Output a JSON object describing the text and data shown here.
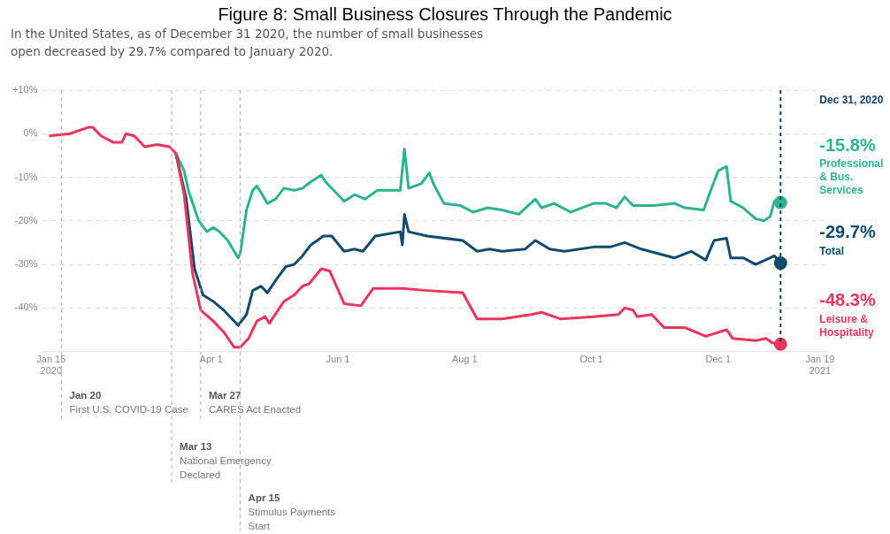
{
  "chart_data": {
    "type": "line",
    "title": "Figure 8: Small Business Closures Through the Pandemic",
    "subtitle": "In the United States, as of December 31 2020, the number of small businesses\nopen decreased by 29.7% compared to January 2020.",
    "xlim": [
      "2020-01-11",
      "2021-01-22"
    ],
    "xticks": [
      {
        "value": "2020-01-15",
        "label": "Jan 15\n2020"
      },
      {
        "value": "2020-04-01",
        "label": "Apr 1"
      },
      {
        "value": "2020-06-01",
        "label": "Jun 1"
      },
      {
        "value": "2020-08-01",
        "label": "Aug 1"
      },
      {
        "value": "2020-10-01",
        "label": "Oct 1"
      },
      {
        "value": "2020-12-01",
        "label": "Dec 1"
      },
      {
        "value": "2021-01-19",
        "label": "Jan 19\n2021"
      }
    ],
    "ylim": [
      -50,
      10
    ],
    "yticks": [
      {
        "value": -40,
        "label": "-40%"
      },
      {
        "value": -30,
        "label": "-30%"
      },
      {
        "value": -20,
        "label": "-20%"
      },
      {
        "value": -10,
        "label": "-10%"
      },
      {
        "value": 0,
        "label": "0%"
      },
      {
        "value": 10,
        "label": "+10%"
      }
    ],
    "grid": "y",
    "legend": false,
    "ref_lines": [
      {
        "axis": "x",
        "value": "2020-01-20",
        "label": "Jan 20\nFirst U.S. COVID-19 Case",
        "color": "#b0b0b0",
        "line_style": "dashed"
      },
      {
        "axis": "x",
        "value": "2020-03-13",
        "label": "Mar 13\nNational Emergency\nDeclared",
        "color": "#b0b0b0",
        "line_style": "dashed"
      },
      {
        "axis": "x",
        "value": "2020-03-27",
        "label": "Mar 27\nCARES Act Enacted",
        "color": "#b0b0b0",
        "line_style": "dashed"
      },
      {
        "axis": "x",
        "value": "2020-04-15",
        "label": "Apr 15\nStimulus Payments\nStart",
        "color": "#b0b0b0",
        "line_style": "dashed"
      },
      {
        "axis": "x",
        "value": "2020-12-31",
        "label": "Dec 31, 2020",
        "color": "#123f5a",
        "line_style": "dashed"
      }
    ],
    "series": [
      {
        "name": "Professional & Bus. Services",
        "color": "#2db390",
        "x": [
          "2020-03-15",
          "2020-03-19",
          "2020-03-21",
          "2020-03-26",
          "2020-03-30",
          "2020-04-02",
          "2020-04-05",
          "2020-04-09",
          "2020-04-14",
          "2020-04-15",
          "2020-04-18",
          "2020-04-21",
          "2020-04-23",
          "2020-04-25",
          "2020-04-28",
          "2020-05-02",
          "2020-05-06",
          "2020-05-11",
          "2020-05-15",
          "2020-05-19",
          "2020-05-24",
          "2020-05-26",
          "2020-06-01",
          "2020-06-04",
          "2020-06-09",
          "2020-06-14",
          "2020-06-20",
          "2020-07-01",
          "2020-07-03",
          "2020-07-05",
          "2020-07-11",
          "2020-07-15",
          "2020-07-17",
          "2020-07-22",
          "2020-07-30",
          "2020-08-05",
          "2020-08-12",
          "2020-08-19",
          "2020-08-27",
          "2020-09-04",
          "2020-09-07",
          "2020-09-13",
          "2020-09-21",
          "2020-10-02",
          "2020-10-08",
          "2020-10-13",
          "2020-10-17",
          "2020-10-21",
          "2020-10-31",
          "2020-11-10",
          "2020-11-15",
          "2020-11-24",
          "2020-11-27",
          "2020-12-01",
          "2020-12-05",
          "2020-12-07",
          "2020-12-13",
          "2020-12-19",
          "2020-12-23",
          "2020-12-26",
          "2020-12-28",
          "2020-12-31"
        ],
        "values": [
          -4.5,
          -8.5,
          -13,
          -20,
          -22.5,
          -21.5,
          -22.5,
          -24.5,
          -28.5,
          -27.5,
          -17.5,
          -13,
          -12,
          -13.5,
          -16,
          -15,
          -12.5,
          -13,
          -12.5,
          -11,
          -9.5,
          -11,
          -14,
          -15.5,
          -14,
          -15,
          -13,
          -13,
          -3.5,
          -12.5,
          -11.5,
          -9,
          -11.5,
          -16,
          -16.5,
          -18,
          -17,
          -17.5,
          -18.5,
          -15,
          -17,
          -16,
          -18,
          -16,
          -16,
          -17,
          -14.5,
          -16.5,
          -16.5,
          -16,
          -17,
          -17.5,
          -13.5,
          -8.5,
          -7.5,
          -15.5,
          -17,
          -19.5,
          -20,
          -19,
          -15.5,
          -15.8
        ],
        "value_labels": [
          null,
          null,
          null,
          null,
          null,
          null,
          null,
          null,
          null,
          null,
          null,
          null,
          null,
          null,
          null,
          null,
          null,
          null,
          null,
          null,
          null,
          null,
          null,
          null,
          null,
          null,
          null,
          null,
          null,
          null,
          null,
          null,
          null,
          null,
          null,
          null,
          null,
          null,
          null,
          null,
          null,
          null,
          null,
          null,
          null,
          null,
          null,
          null,
          null,
          null,
          null,
          null,
          null,
          null,
          null,
          null,
          null,
          null,
          null,
          null,
          null,
          "-15.8%"
        ]
      },
      {
        "name": "Total",
        "color": "#0f4c6b",
        "x": [
          "2020-03-15",
          "2020-03-20",
          "2020-03-24",
          "2020-03-28",
          "2020-04-02",
          "2020-04-07",
          "2020-04-14",
          "2020-04-18",
          "2020-04-21",
          "2020-04-25",
          "2020-04-28",
          "2020-05-03",
          "2020-05-07",
          "2020-05-11",
          "2020-05-15",
          "2020-05-19",
          "2020-05-25",
          "2020-05-29",
          "2020-06-04",
          "2020-06-09",
          "2020-06-13",
          "2020-06-19",
          "2020-07-01",
          "2020-07-02",
          "2020-07-03",
          "2020-07-05",
          "2020-07-14",
          "2020-07-31",
          "2020-08-07",
          "2020-08-13",
          "2020-08-19",
          "2020-08-30",
          "2020-09-04",
          "2020-09-11",
          "2020-09-18",
          "2020-10-02",
          "2020-10-10",
          "2020-10-17",
          "2020-10-25",
          "2020-11-10",
          "2020-11-18",
          "2020-11-25",
          "2020-11-29",
          "2020-12-05",
          "2020-12-07",
          "2020-12-13",
          "2020-12-19",
          "2020-12-26",
          "2020-12-28",
          "2020-12-31"
        ],
        "values": [
          -4.5,
          -15,
          -31,
          -37,
          -38.5,
          -40.5,
          -44,
          -41.5,
          -36,
          -35,
          -36.5,
          -33,
          -30.5,
          -30,
          -28,
          -25.5,
          -23.5,
          -23.5,
          -27,
          -26.5,
          -27,
          -23.5,
          -22.5,
          -25.5,
          -18.5,
          -22.5,
          -23.5,
          -24.5,
          -27,
          -26.5,
          -27,
          -26.5,
          -24.5,
          -26.5,
          -27,
          -26,
          -26,
          -25,
          -26.5,
          -28.5,
          -27,
          -29,
          -24.5,
          -24,
          -28.5,
          -28.5,
          -30,
          -28.5,
          -28,
          -29.7
        ],
        "value_labels": [
          null,
          null,
          null,
          null,
          null,
          null,
          null,
          null,
          null,
          null,
          null,
          null,
          null,
          null,
          null,
          null,
          null,
          null,
          null,
          null,
          null,
          null,
          null,
          null,
          null,
          null,
          null,
          null,
          null,
          null,
          null,
          null,
          null,
          null,
          null,
          null,
          null,
          null,
          null,
          null,
          null,
          null,
          null,
          null,
          null,
          null,
          null,
          null,
          null,
          "-29.7%"
        ]
      },
      {
        "name": "Leisure & Hospitality",
        "color": "#e8365d",
        "x": [
          "2020-01-14",
          "2020-01-24",
          "2020-02-02",
          "2020-02-04",
          "2020-02-08",
          "2020-02-14",
          "2020-02-18",
          "2020-02-20",
          "2020-02-24",
          "2020-02-29",
          "2020-03-06",
          "2020-03-12",
          "2020-03-15",
          "2020-03-19",
          "2020-03-23",
          "2020-03-27",
          "2020-04-02",
          "2020-04-07",
          "2020-04-12",
          "2020-04-15",
          "2020-04-19",
          "2020-04-23",
          "2020-04-27",
          "2020-04-29",
          "2020-05-06",
          "2020-05-11",
          "2020-05-15",
          "2020-05-18",
          "2020-05-24",
          "2020-05-28",
          "2020-06-04",
          "2020-06-12",
          "2020-06-18",
          "2020-07-02",
          "2020-07-14",
          "2020-07-31",
          "2020-08-07",
          "2020-08-19",
          "2020-09-02",
          "2020-09-07",
          "2020-09-16",
          "2020-10-02",
          "2020-10-14",
          "2020-10-17",
          "2020-10-21",
          "2020-10-23",
          "2020-10-30",
          "2020-11-05",
          "2020-11-15",
          "2020-11-25",
          "2020-12-05",
          "2020-12-08",
          "2020-12-19",
          "2020-12-24",
          "2020-12-27",
          "2020-12-31"
        ],
        "values": [
          -0.5,
          0,
          1.5,
          1.5,
          -0.5,
          -2,
          -2,
          0,
          -0.5,
          -3,
          -2.5,
          -3,
          -4.5,
          -14,
          -32,
          -40.5,
          -43,
          -45.5,
          -49,
          -49,
          -47,
          -43,
          -42,
          -43.5,
          -38.5,
          -37,
          -35,
          -34.5,
          -31,
          -31.5,
          -39,
          -39.5,
          -35.5,
          -35.5,
          -36,
          -36.5,
          -42.5,
          -42.5,
          -41.5,
          -41,
          -42.5,
          -42,
          -41.5,
          -40,
          -40.5,
          -42,
          -41.5,
          -44.5,
          -44.5,
          -46.5,
          -45,
          -47,
          -47.5,
          -47,
          -48,
          -48.3
        ],
        "value_labels": [
          null,
          null,
          null,
          null,
          null,
          null,
          null,
          null,
          null,
          null,
          null,
          null,
          null,
          null,
          null,
          null,
          null,
          null,
          null,
          null,
          null,
          null,
          null,
          null,
          null,
          null,
          null,
          null,
          null,
          null,
          null,
          null,
          null,
          null,
          null,
          null,
          null,
          null,
          null,
          null,
          null,
          null,
          null,
          null,
          null,
          null,
          null,
          null,
          null,
          null,
          null,
          null,
          null,
          null,
          null,
          "-48.3%"
        ]
      }
    ]
  }
}
